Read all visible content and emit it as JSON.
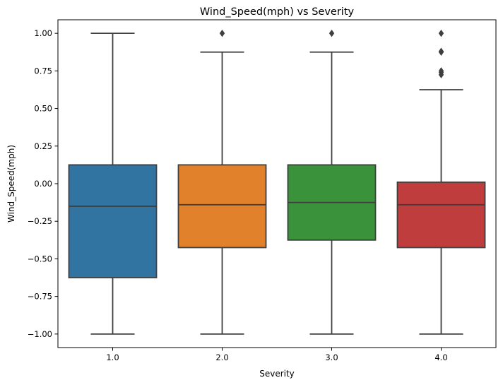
{
  "chart_data": {
    "type": "box",
    "title": "Wind_Speed(mph) vs Severity",
    "xlabel": "Severity",
    "ylabel": "Wind_Speed(mph)",
    "categories": [
      "1.0",
      "2.0",
      "3.0",
      "4.0"
    ],
    "ylim": [
      -1.09,
      1.09
    ],
    "yticks": [
      -1.0,
      -0.75,
      -0.5,
      -0.25,
      0.0,
      0.25,
      0.5,
      0.75,
      1.0
    ],
    "ytick_labels": [
      "−1.00",
      "−0.75",
      "−0.50",
      "−0.25",
      "0.00",
      "0.25",
      "0.50",
      "0.75",
      "1.00"
    ],
    "boxes": [
      {
        "category": "1.0",
        "whisker_low": -1.0,
        "q1": -0.625,
        "median": -0.15,
        "q3": 0.125,
        "whisker_high": 1.0,
        "outliers": [],
        "color": "#3274a1"
      },
      {
        "category": "2.0",
        "whisker_low": -1.0,
        "q1": -0.425,
        "median": -0.14,
        "q3": 0.125,
        "whisker_high": 0.875,
        "outliers": [
          1.0
        ],
        "color": "#e1812c"
      },
      {
        "category": "3.0",
        "whisker_low": -1.0,
        "q1": -0.375,
        "median": -0.125,
        "q3": 0.125,
        "whisker_high": 0.875,
        "outliers": [
          1.0
        ],
        "color": "#3a923a"
      },
      {
        "category": "4.0",
        "whisker_low": -1.0,
        "q1": -0.425,
        "median": -0.14,
        "q3": 0.01,
        "whisker_high": 0.625,
        "outliers": [
          0.725,
          0.74,
          0.75,
          0.875,
          0.88,
          1.0
        ],
        "color": "#c03d3e"
      }
    ],
    "line_color": "#3f3f3f",
    "grid": false,
    "legend": "none"
  }
}
